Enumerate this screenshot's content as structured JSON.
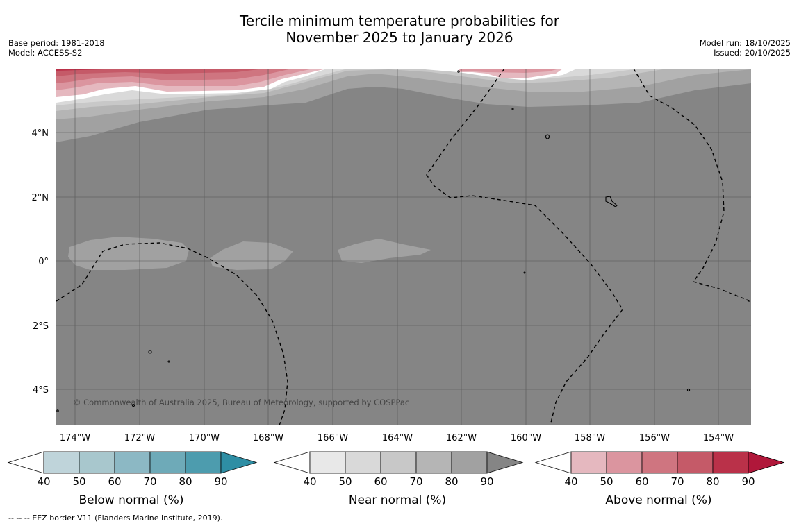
{
  "title": {
    "line1": "Tercile minimum temperature probabilities for",
    "line2": "November 2025 to January 2026"
  },
  "meta_left": {
    "base_period": "Base period: 1981-2018",
    "model": "Model: ACCESS-S2"
  },
  "meta_right": {
    "model_run": "Model run: 18/10/2025",
    "issued": "Issued: 20/10/2025"
  },
  "map": {
    "lat_labels": [
      "4°N",
      "2°N",
      "0°",
      "2°S",
      "4°S"
    ],
    "lon_labels": [
      "174°W",
      "172°W",
      "170°W",
      "168°W",
      "166°W",
      "164°W",
      "162°W",
      "160°W",
      "158°W",
      "156°W",
      "154°W"
    ],
    "copyright": "© Commonwealth of Australia 2025, Bureau of Meteorology, supported by COSPPac"
  },
  "colorbars": [
    {
      "title": "Below normal (%)",
      "ticks": [
        "40",
        "50",
        "60",
        "70",
        "80",
        "90"
      ],
      "colors": [
        "#ffffff",
        "#bfd4da",
        "#a8c7cd",
        "#8cb8c4",
        "#6eaab8",
        "#4d9cae",
        "#2e8ea4"
      ]
    },
    {
      "title": "Near normal (%)",
      "ticks": [
        "40",
        "50",
        "60",
        "70",
        "80",
        "90"
      ],
      "colors": [
        "#ffffff",
        "#e8e8e8",
        "#d9d9d9",
        "#c8c8c8",
        "#b5b5b5",
        "#a1a1a1",
        "#858585"
      ]
    },
    {
      "title": "Above normal (%)",
      "ticks": [
        "40",
        "50",
        "60",
        "70",
        "80",
        "90"
      ],
      "colors": [
        "#ffffff",
        "#e5b8bf",
        "#db959f",
        "#cf7580",
        "#c55a68",
        "#ba3149",
        "#b0173a"
      ]
    }
  ],
  "footnote": "--  --  -- EEZ border V11 (Flanders Marine Institute, 2019)."
}
